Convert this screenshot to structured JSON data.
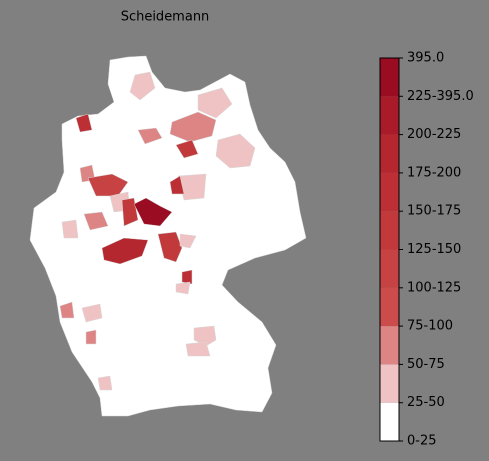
{
  "title": "Scheidemann",
  "colorbar": {
    "ticks": [
      "0-25",
      "25-50",
      "50-75",
      "75-100",
      "100-125",
      "125-150",
      "150-175",
      "175-200",
      "200-225",
      "225-395.0",
      "395.0"
    ],
    "colors": [
      "#ffffff",
      "#efc3c3",
      "#dd8585",
      "#cc4c4c",
      "#c64243",
      "#c1393b",
      "#bc3035",
      "#b5272f",
      "#aa1b29",
      "#9a0c22"
    ]
  }
}
